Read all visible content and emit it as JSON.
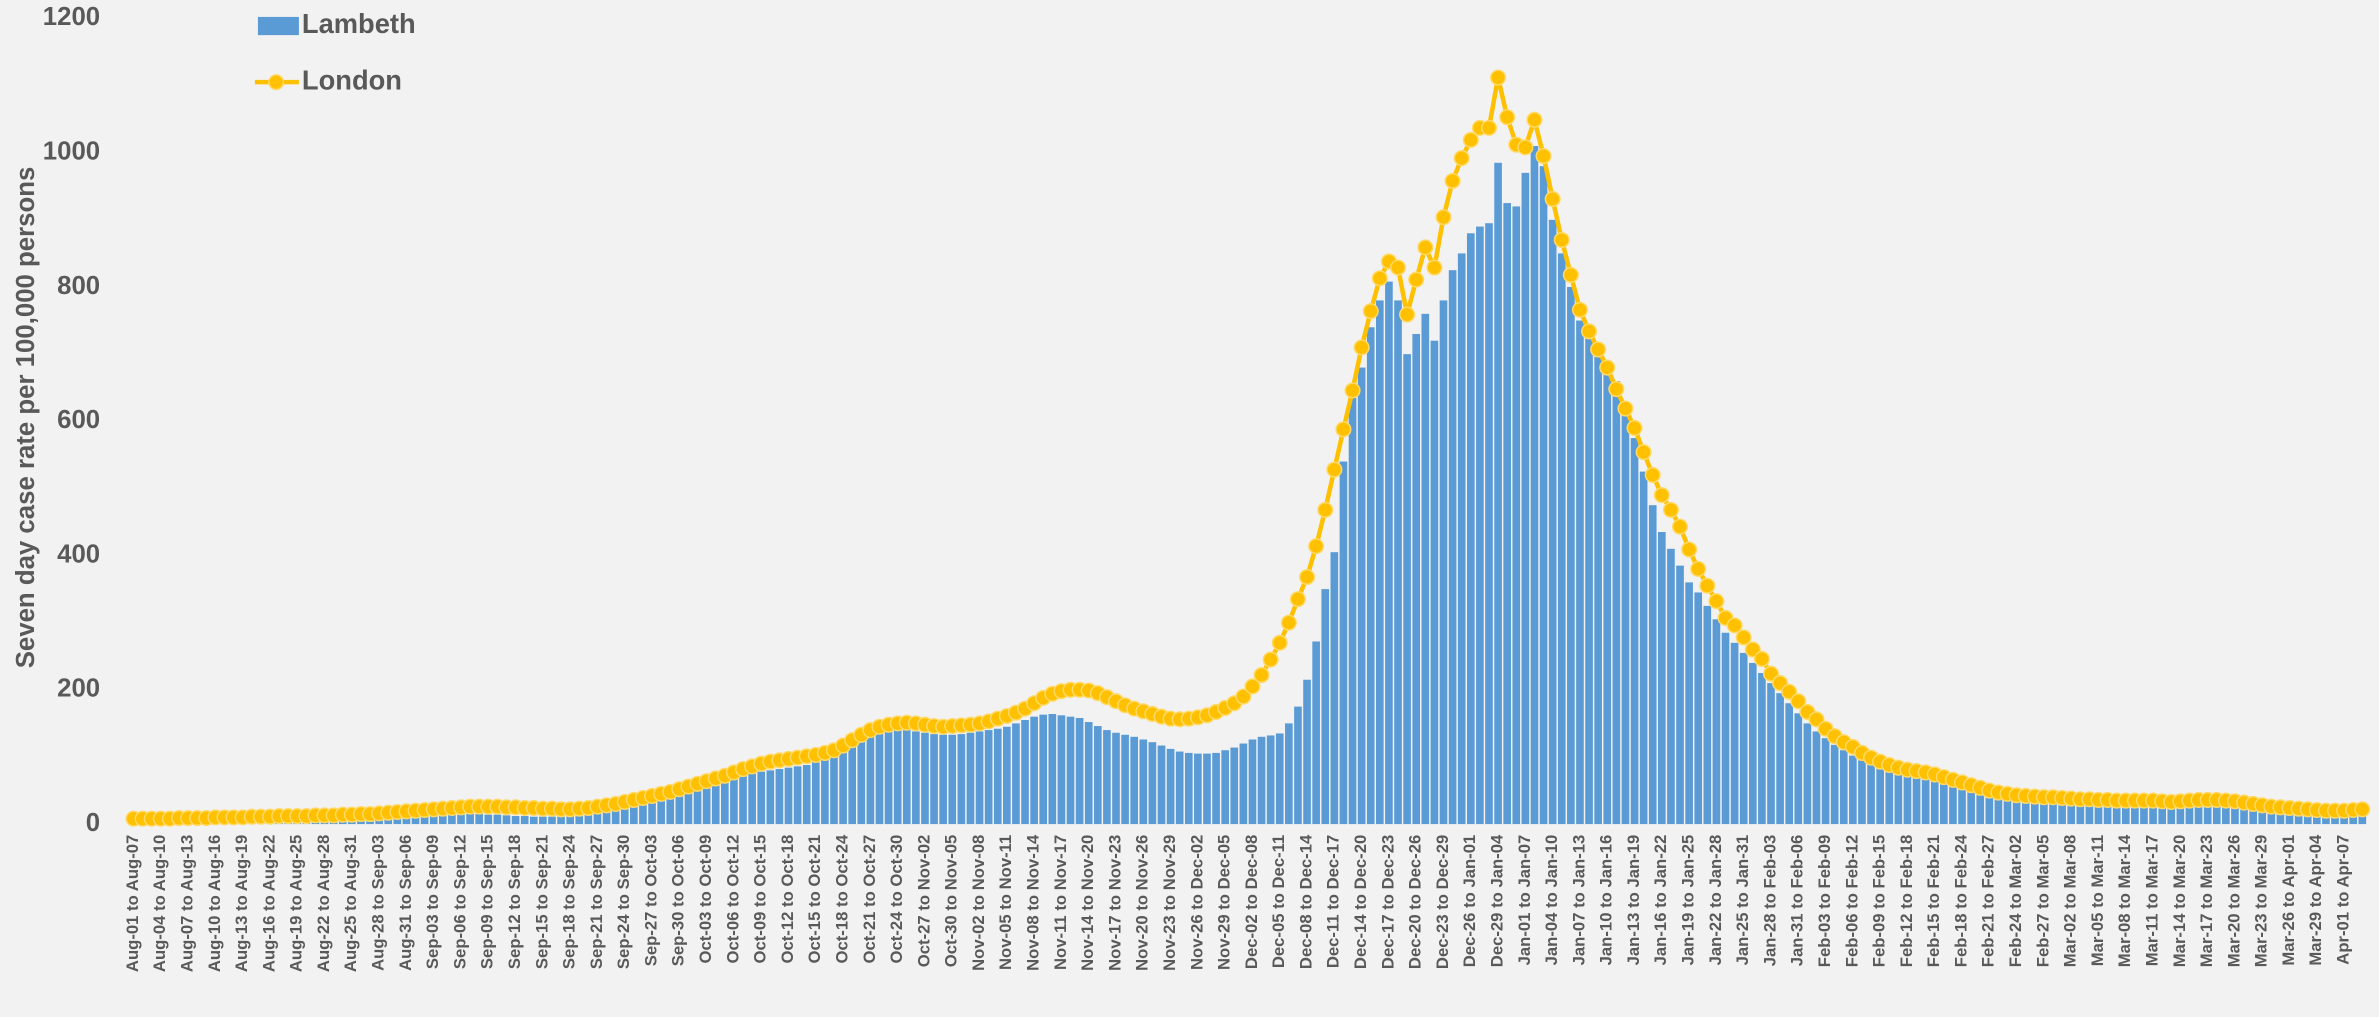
{
  "chart_data": {
    "type": "bar",
    "ylabel": "Seven day case rate per 100,000 persons",
    "categories": [
      "Aug-01 to Aug-07",
      null,
      null,
      "Aug-04 to Aug-10",
      null,
      null,
      "Aug-07 to Aug-13",
      null,
      null,
      "Aug-10 to Aug-16",
      null,
      null,
      "Aug-13 to Aug-19",
      null,
      null,
      "Aug-16 to Aug-22",
      null,
      null,
      "Aug-19 to Aug-25",
      null,
      null,
      "Aug-22 to Aug-28",
      null,
      null,
      "Aug-25 to Aug-31",
      null,
      null,
      "Aug-28 to Sep-03",
      null,
      null,
      "Aug-31 to Sep-06",
      null,
      null,
      "Sep-03 to Sep-09",
      null,
      null,
      "Sep-06 to Sep-12",
      null,
      null,
      "Sep-09 to Sep-15",
      null,
      null,
      "Sep-12 to Sep-18",
      null,
      null,
      "Sep-15 to Sep-21",
      null,
      null,
      "Sep-18 to Sep-24",
      null,
      null,
      "Sep-21 to Sep-27",
      null,
      null,
      "Sep-24 to Sep-30",
      null,
      null,
      "Sep-27 to Oct-03",
      null,
      null,
      "Sep-30 to Oct-06",
      null,
      null,
      "Oct-03 to Oct-09",
      null,
      null,
      "Oct-06 to Oct-12",
      null,
      null,
      "Oct-09 to Oct-15",
      null,
      null,
      "Oct-12 to Oct-18",
      null,
      null,
      "Oct-15 to Oct-21",
      null,
      null,
      "Oct-18 to Oct-24",
      null,
      null,
      "Oct-21 to Oct-27",
      null,
      null,
      "Oct-24 to Oct-30",
      null,
      null,
      "Oct-27 to Nov-02",
      null,
      null,
      "Oct-30 to Nov-05",
      null,
      null,
      "Nov-02 to Nov-08",
      null,
      null,
      "Nov-05 to Nov-11",
      null,
      null,
      "Nov-08 to Nov-14",
      null,
      null,
      "Nov-11 to Nov-17",
      null,
      null,
      "Nov-14 to Nov-20",
      null,
      null,
      "Nov-17 to Nov-23",
      null,
      null,
      "Nov-20 to Nov-26",
      null,
      null,
      "Nov-23 to Nov-29",
      null,
      null,
      "Nov-26 to Dec-02",
      null,
      null,
      "Nov-29 to Dec-05",
      null,
      null,
      "Dec-02 to Dec-08",
      null,
      null,
      "Dec-05 to Dec-11",
      null,
      null,
      "Dec-08 to Dec-14",
      null,
      null,
      "Dec-11 to Dec-17",
      null,
      null,
      "Dec-14 to Dec-20",
      null,
      null,
      "Dec-17 to Dec-23",
      null,
      null,
      "Dec-20 to Dec-26",
      null,
      null,
      "Dec-23 to Dec-29",
      null,
      null,
      "Dec-26 to Jan-01",
      null,
      null,
      "Dec-29 to Jan-04",
      null,
      null,
      "Jan-01 to Jan-07",
      null,
      null,
      "Jan-04 to Jan-10",
      null,
      null,
      "Jan-07 to Jan-13",
      null,
      null,
      "Jan-10 to Jan-16",
      null,
      null,
      "Jan-13 to Jan-19",
      null,
      null,
      "Jan-16 to Jan-22",
      null,
      null,
      "Jan-19 to Jan-25",
      null,
      null,
      "Jan-22 to Jan-28",
      null,
      null,
      "Jan-25 to Jan-31",
      null,
      null,
      "Jan-28 to Feb-03",
      null,
      null,
      "Jan-31 to Feb-06",
      null,
      null,
      "Feb-03 to Feb-09",
      null,
      null,
      "Feb-06 to Feb-12",
      null,
      null,
      "Feb-09 to Feb-15",
      null,
      null,
      "Feb-12 to Feb-18",
      null,
      null,
      "Feb-15 to Feb-21",
      null,
      null,
      "Feb-18 to Feb-24",
      null,
      null,
      "Feb-21 to Feb-27",
      null,
      null,
      "Feb-24 to Mar-02",
      null,
      null,
      "Feb-27 to Mar-05",
      null,
      null,
      "Mar-02 to Mar-08",
      null,
      null,
      "Mar-05 to Mar-11",
      null,
      null,
      "Mar-08 to Mar-14",
      null,
      null,
      "Mar-11 to Mar-17",
      null,
      null,
      "Mar-14 to Mar-20",
      null,
      null,
      "Mar-17 to Mar-23",
      null,
      null,
      "Mar-20 to Mar-26",
      null,
      null,
      "Mar-23 to Mar-29",
      null,
      null,
      "Mar-26 to Apr-01",
      null,
      null,
      "Mar-29 to Apr-04",
      null,
      null,
      "Apr-01 to Apr-07",
      null,
      null
    ],
    "series": [
      {
        "name": "Lambeth",
        "type": "bar",
        "color": "#5b9bd5",
        "values": [
          3,
          3,
          3,
          3,
          3,
          3,
          3,
          3,
          3,
          3,
          3,
          3,
          3,
          3,
          3,
          3,
          4,
          4,
          4,
          4,
          4,
          4,
          4,
          5,
          5,
          5,
          6,
          6,
          7,
          8,
          9,
          10,
          11,
          12,
          13,
          14,
          14,
          15,
          15,
          14,
          14,
          13,
          12,
          12,
          11,
          11,
          11,
          11,
          12,
          13,
          14,
          16,
          19,
          22,
          25,
          28,
          31,
          34,
          37,
          40,
          44,
          48,
          52,
          56,
          60,
          64,
          68,
          72,
          76,
          78,
          80,
          82,
          84,
          86,
          88,
          92,
          96,
          102,
          110,
          120,
          128,
          134,
          138,
          140,
          141,
          140,
          138,
          136,
          134,
          133,
          133,
          134,
          136,
          138,
          140,
          142,
          145,
          150,
          155,
          160,
          163,
          164,
          162,
          160,
          158,
          152,
          146,
          140,
          136,
          133,
          130,
          126,
          122,
          117,
          112,
          108,
          106,
          105,
          105,
          106,
          110,
          114,
          120,
          126,
          130,
          132,
          135,
          150,
          175,
          215,
          272,
          350,
          405,
          540,
          640,
          680,
          740,
          780,
          808,
          780,
          700,
          730,
          760,
          720,
          780,
          825,
          850,
          880,
          890,
          895,
          985,
          925,
          920,
          970,
          1010,
          980,
          900,
          850,
          800,
          750,
          725,
          700,
          690,
          660,
          615,
          575,
          525,
          475,
          435,
          410,
          385,
          360,
          345,
          325,
          305,
          285,
          270,
          255,
          240,
          225,
          210,
          195,
          180,
          165,
          150,
          138,
          128,
          118,
          110,
          102,
          95,
          90,
          86,
          82,
          79,
          76,
          74,
          72,
          68,
          64,
          60,
          56,
          52,
          48,
          45,
          42,
          40,
          38,
          36,
          35,
          34,
          33,
          32,
          31,
          30,
          30,
          29,
          29,
          28,
          28,
          28,
          27,
          27,
          26,
          26,
          27,
          27,
          28,
          28,
          27,
          26,
          24,
          22,
          20,
          18,
          16,
          15,
          14,
          13,
          12,
          12,
          11,
          11,
          11,
          12,
          13
        ]
      },
      {
        "name": "London",
        "type": "line",
        "color": "#ffc000",
        "values": [
          8,
          8,
          8,
          8,
          8,
          9,
          9,
          9,
          9,
          10,
          10,
          10,
          10,
          11,
          11,
          11,
          12,
          12,
          12,
          12,
          13,
          13,
          13,
          14,
          14,
          15,
          15,
          16,
          17,
          18,
          19,
          20,
          21,
          22,
          23,
          24,
          25,
          26,
          26,
          26,
          26,
          25,
          25,
          24,
          24,
          23,
          23,
          22,
          22,
          23,
          24,
          26,
          28,
          30,
          33,
          36,
          39,
          42,
          45,
          48,
          52,
          56,
          60,
          64,
          68,
          72,
          77,
          82,
          86,
          90,
          93,
          95,
          97,
          99,
          101,
          103,
          106,
          110,
          117,
          125,
          133,
          140,
          145,
          148,
          150,
          151,
          150,
          148,
          146,
          145,
          146,
          147,
          148,
          150,
          153,
          157,
          161,
          166,
          172,
          180,
          188,
          194,
          198,
          200,
          200,
          199,
          195,
          189,
          183,
          177,
          172,
          168,
          164,
          160,
          157,
          156,
          157,
          159,
          162,
          167,
          173,
          180,
          190,
          205,
          222,
          245,
          270,
          300,
          335,
          368,
          414,
          468,
          528,
          588,
          646,
          710,
          764,
          813,
          838,
          829,
          759,
          811,
          859,
          829,
          904,
          958,
          992,
          1019,
          1037,
          1037,
          1112,
          1053,
          1012,
          1008,
          1049,
          995,
          931,
          870,
          818,
          766,
          734,
          707,
          680,
          648,
          619,
          590,
          554,
          520,
          490,
          468,
          443,
          409,
          380,
          355,
          332,
          307,
          296,
          278,
          260,
          246,
          224,
          210,
          197,
          183,
          167,
          156,
          142,
          131,
          122,
          115,
          106,
          99,
          93,
          88,
          84,
          81,
          79,
          77,
          74,
          70,
          66,
          62,
          58,
          54,
          50,
          47,
          45,
          43,
          42,
          41,
          40,
          40,
          39,
          38,
          37,
          37,
          36,
          36,
          35,
          35,
          35,
          35,
          35,
          34,
          33,
          34,
          35,
          36,
          36,
          36,
          35,
          34,
          32,
          30,
          28,
          26,
          25,
          24,
          23,
          22,
          21,
          20,
          20,
          20,
          21,
          22
        ]
      }
    ],
    "ylim": [
      0,
      1200
    ],
    "yticks": [
      0,
      200,
      400,
      600,
      800,
      1000,
      1200
    ],
    "legend": "top-left"
  }
}
